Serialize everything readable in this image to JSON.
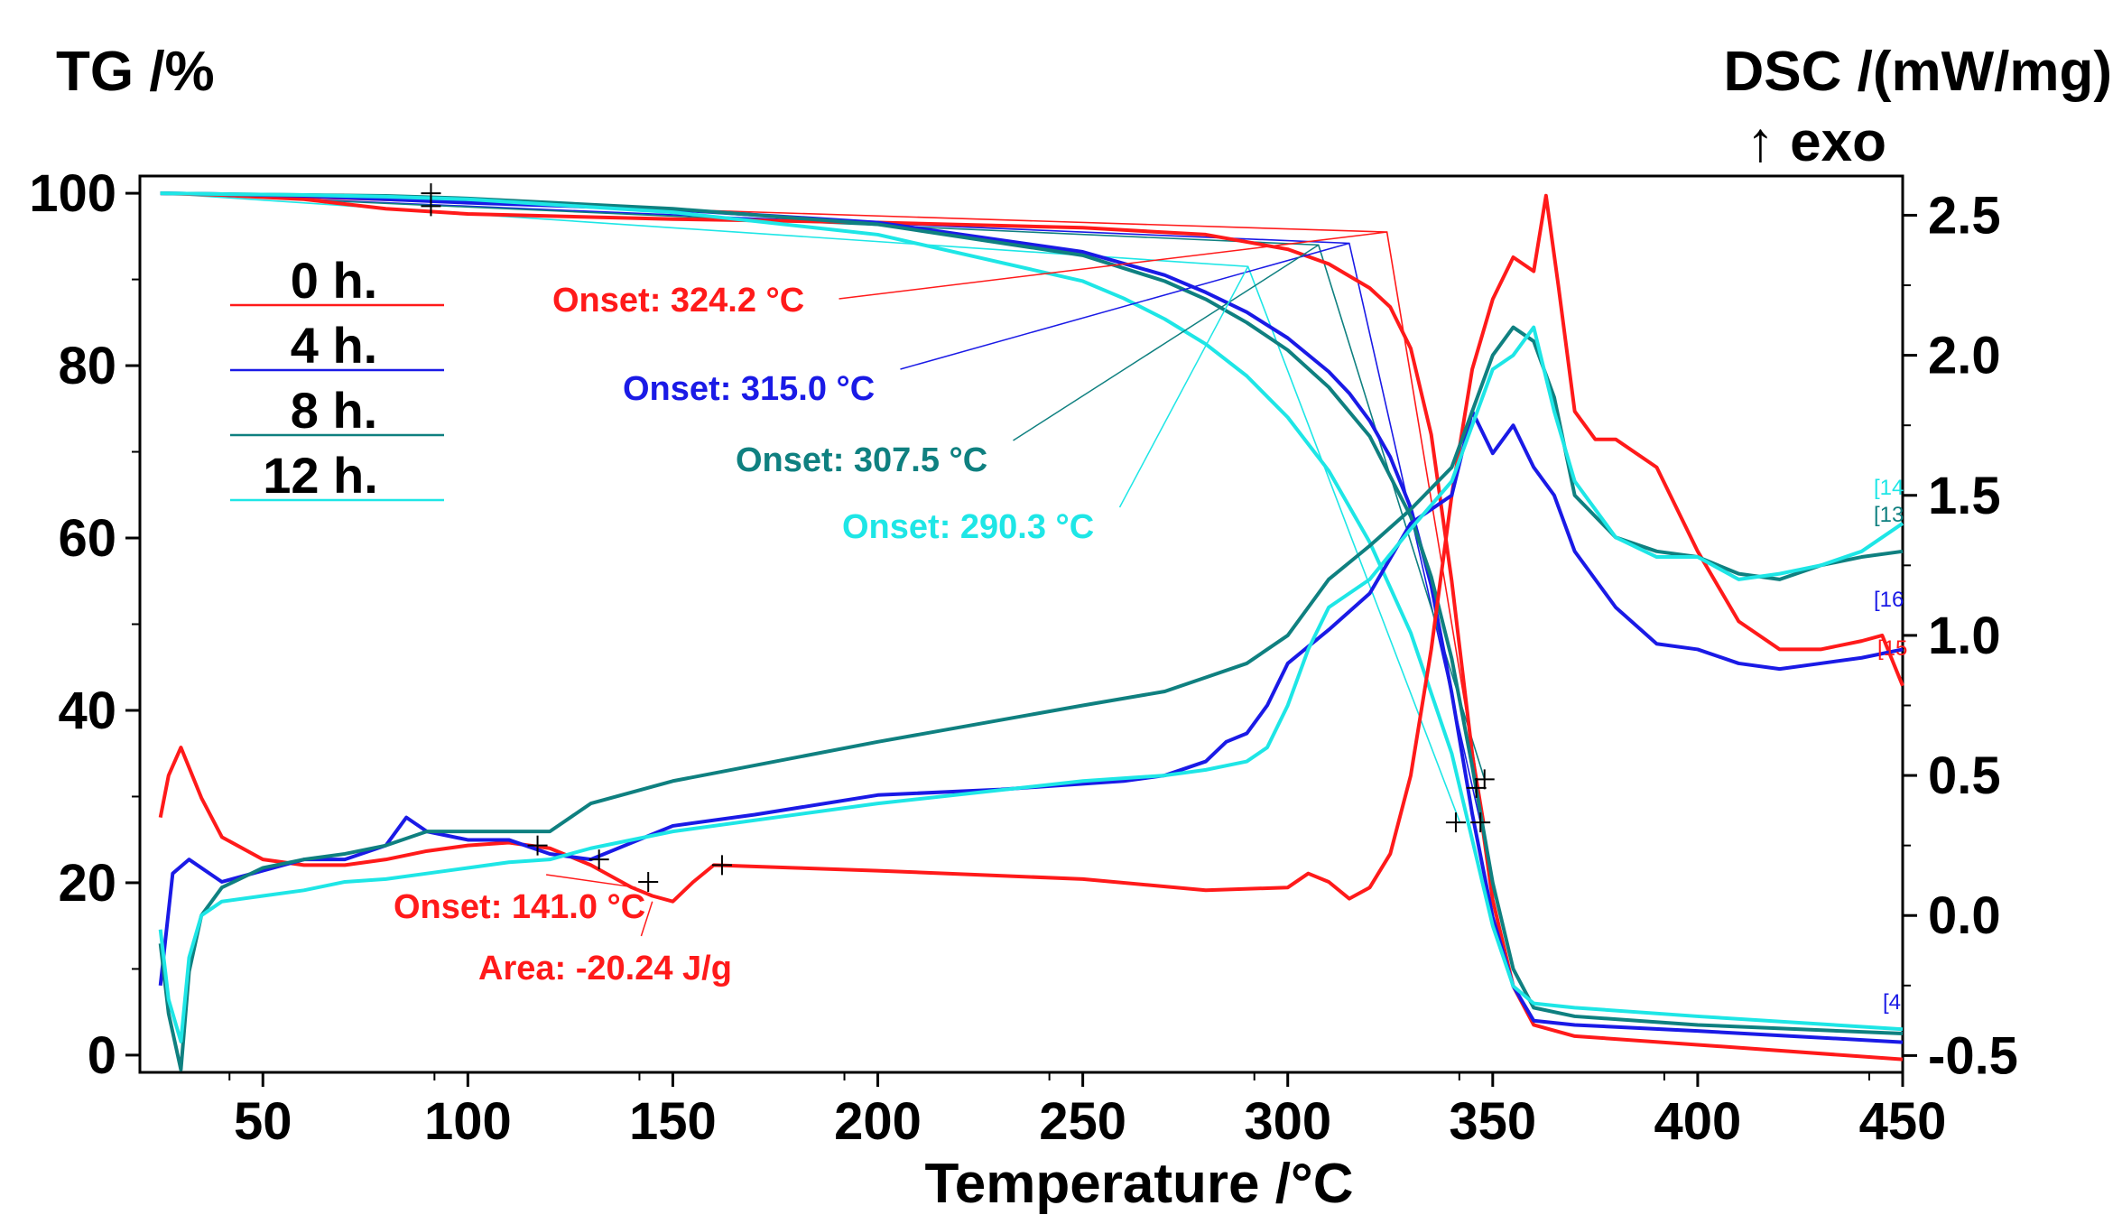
{
  "chart_data": {
    "type": "line",
    "xlabel": "Temperature /°C",
    "ylabel_left": "TG /%",
    "ylabel_right": "DSC /(mW/mg)",
    "ylabel_right_sub": "↑ exo",
    "xlim": [
      20,
      450
    ],
    "ylim_left": [
      -2,
      102
    ],
    "ylim_right": [
      -0.56,
      2.64
    ],
    "x_ticks": [
      50,
      100,
      150,
      200,
      250,
      300,
      350,
      400,
      450
    ],
    "x_tick_labels": [
      "50",
      "100",
      "150",
      "200",
      "250",
      "300",
      "350",
      "400",
      "450"
    ],
    "y_left_ticks": [
      0,
      20,
      40,
      60,
      80,
      100
    ],
    "y_left_tick_labels": [
      "0",
      "20",
      "40",
      "60",
      "80",
      "100"
    ],
    "y_right_ticks": [
      -0.5,
      0.0,
      0.5,
      1.0,
      1.5,
      2.0,
      2.5
    ],
    "y_right_tick_labels": [
      "-0.5",
      "0.0",
      "0.5",
      "1.0",
      "1.5",
      "2.0",
      "2.5"
    ],
    "legend": [
      {
        "label": "0 h.",
        "color": "#ff1a1a"
      },
      {
        "label": "4 h.",
        "color": "#1a1ae6"
      },
      {
        "label": "8 h.",
        "color": "#0f8080"
      },
      {
        "label": "12 h.",
        "color": "#1ee6e6"
      }
    ],
    "series": [
      {
        "name": "0 h.",
        "kind": "TG",
        "color": "#ff1a1a",
        "x": [
          25,
          40,
          60,
          80,
          100,
          150,
          200,
          250,
          280,
          300,
          310,
          320,
          325,
          330,
          335,
          340,
          345,
          350,
          355,
          360,
          370,
          400,
          450
        ],
        "y": [
          100,
          99.8,
          99.3,
          98.2,
          97.6,
          97.0,
          96.6,
          96.0,
          95.2,
          93.5,
          91.8,
          89.0,
          86.8,
          82.0,
          72.0,
          55.0,
          35.0,
          18.0,
          8.0,
          3.5,
          2.2,
          1.2,
          -0.5
        ]
      },
      {
        "name": "4 h.",
        "kind": "TG",
        "color": "#1a1ae6",
        "x": [
          25,
          40,
          60,
          80,
          100,
          150,
          200,
          250,
          270,
          280,
          290,
          300,
          310,
          315,
          320,
          325,
          330,
          335,
          340,
          345,
          350,
          355,
          360,
          370,
          400,
          450
        ],
        "y": [
          100,
          99.9,
          99.7,
          99.3,
          98.9,
          98.1,
          96.6,
          93.2,
          90.5,
          88.5,
          86.2,
          83.2,
          79.3,
          76.8,
          73.6,
          69.4,
          63.5,
          54.5,
          42.0,
          28.0,
          16.0,
          8.0,
          4.0,
          3.5,
          2.8,
          1.5
        ]
      },
      {
        "name": "8 h.",
        "kind": "TG",
        "color": "#0f8080",
        "x": [
          25,
          40,
          60,
          80,
          100,
          150,
          200,
          250,
          270,
          280,
          290,
          300,
          310,
          320,
          330,
          335,
          340,
          345,
          350,
          355,
          360,
          370,
          400,
          450
        ],
        "y": [
          100,
          99.9,
          99.8,
          99.7,
          99.4,
          98.2,
          96.4,
          92.8,
          89.8,
          87.7,
          85.0,
          81.8,
          77.5,
          71.8,
          62.5,
          55.5,
          46.0,
          33.5,
          20.0,
          10.0,
          5.5,
          4.5,
          3.5,
          2.5
        ]
      },
      {
        "name": "12 h.",
        "kind": "TG",
        "color": "#1ee6e6",
        "x": [
          25,
          40,
          60,
          80,
          100,
          150,
          200,
          250,
          260,
          270,
          280,
          290,
          300,
          310,
          320,
          330,
          340,
          345,
          350,
          355,
          360,
          370,
          400,
          450
        ],
        "y": [
          100,
          99.9,
          99.8,
          99.6,
          99.3,
          97.8,
          95.2,
          89.8,
          87.8,
          85.4,
          82.5,
          78.8,
          74.0,
          67.8,
          59.5,
          49.0,
          35.0,
          25.0,
          15.0,
          8.0,
          6.0,
          5.5,
          4.5,
          3.0
        ]
      },
      {
        "name": "0 h.",
        "kind": "DSC",
        "color": "#ff1a1a",
        "x": [
          25,
          27,
          30,
          35,
          40,
          50,
          60,
          70,
          80,
          90,
          100,
          110,
          120,
          130,
          140,
          145,
          150,
          155,
          160,
          180,
          200,
          250,
          280,
          300,
          305,
          310,
          315,
          320,
          325,
          330,
          335,
          340,
          345,
          350,
          355,
          360,
          363,
          366,
          370,
          375,
          380,
          390,
          400,
          410,
          420,
          430,
          440,
          445,
          450
        ],
        "y": [
          0.35,
          0.5,
          0.6,
          0.42,
          0.28,
          0.2,
          0.18,
          0.18,
          0.2,
          0.23,
          0.25,
          0.26,
          0.24,
          0.18,
          0.1,
          0.07,
          0.05,
          0.12,
          0.18,
          0.17,
          0.16,
          0.13,
          0.09,
          0.1,
          0.15,
          0.12,
          0.06,
          0.1,
          0.22,
          0.5,
          0.95,
          1.5,
          1.95,
          2.2,
          2.35,
          2.3,
          2.57,
          2.25,
          1.8,
          1.7,
          1.7,
          1.6,
          1.3,
          1.05,
          0.95,
          0.95,
          0.98,
          1.0,
          0.82
        ]
      },
      {
        "name": "4 h.",
        "kind": "DSC",
        "color": "#1a1ae6",
        "x": [
          25,
          28,
          32,
          40,
          50,
          60,
          70,
          80,
          85,
          90,
          100,
          110,
          120,
          130,
          150,
          170,
          200,
          230,
          260,
          270,
          280,
          285,
          290,
          295,
          300,
          310,
          320,
          330,
          340,
          345,
          350,
          355,
          360,
          365,
          370,
          380,
          390,
          400,
          410,
          420,
          430,
          440,
          450
        ],
        "y": [
          -0.25,
          0.15,
          0.2,
          0.12,
          0.16,
          0.2,
          0.2,
          0.25,
          0.35,
          0.3,
          0.27,
          0.27,
          0.22,
          0.2,
          0.32,
          0.36,
          0.43,
          0.45,
          0.48,
          0.5,
          0.55,
          0.62,
          0.65,
          0.75,
          0.9,
          1.02,
          1.15,
          1.4,
          1.5,
          1.8,
          1.65,
          1.75,
          1.6,
          1.5,
          1.3,
          1.1,
          0.97,
          0.95,
          0.9,
          0.88,
          0.9,
          0.92,
          0.95
        ]
      },
      {
        "name": "8 h.",
        "kind": "DSC",
        "color": "#0f8080",
        "x": [
          25,
          27,
          30,
          32,
          35,
          40,
          50,
          60,
          70,
          80,
          90,
          100,
          110,
          120,
          130,
          150,
          200,
          250,
          270,
          280,
          290,
          300,
          305,
          310,
          320,
          330,
          340,
          345,
          350,
          355,
          360,
          365,
          370,
          380,
          390,
          400,
          410,
          420,
          430,
          440,
          450
        ],
        "y": [
          -0.1,
          -0.35,
          -0.55,
          -0.2,
          0.0,
          0.1,
          0.17,
          0.2,
          0.22,
          0.25,
          0.3,
          0.3,
          0.3,
          0.3,
          0.4,
          0.48,
          0.62,
          0.75,
          0.8,
          0.85,
          0.9,
          1.0,
          1.1,
          1.2,
          1.32,
          1.45,
          1.6,
          1.8,
          2.0,
          2.1,
          2.05,
          1.85,
          1.5,
          1.35,
          1.3,
          1.28,
          1.22,
          1.2,
          1.25,
          1.28,
          1.3
        ]
      },
      {
        "name": "12 h.",
        "kind": "DSC",
        "color": "#1ee6e6",
        "x": [
          25,
          27,
          30,
          32,
          35,
          40,
          50,
          60,
          70,
          80,
          90,
          100,
          110,
          120,
          130,
          150,
          200,
          250,
          270,
          280,
          290,
          295,
          300,
          305,
          310,
          315,
          320,
          330,
          340,
          345,
          350,
          355,
          360,
          365,
          370,
          380,
          390,
          400,
          410,
          420,
          430,
          440,
          450
        ],
        "y": [
          -0.05,
          -0.3,
          -0.45,
          -0.15,
          0.0,
          0.05,
          0.07,
          0.09,
          0.12,
          0.13,
          0.15,
          0.17,
          0.19,
          0.2,
          0.24,
          0.3,
          0.4,
          0.48,
          0.5,
          0.52,
          0.55,
          0.6,
          0.75,
          0.95,
          1.1,
          1.15,
          1.2,
          1.38,
          1.55,
          1.75,
          1.95,
          2.0,
          2.1,
          1.8,
          1.55,
          1.35,
          1.28,
          1.28,
          1.2,
          1.22,
          1.25,
          1.3,
          1.4
        ]
      }
    ],
    "onset_constructions": [
      {
        "color": "#ff1a1a",
        "x": [
          25,
          324.2,
          348
        ],
        "y": [
          100,
          95.5,
          27
        ]
      },
      {
        "color": "#1a1ae6",
        "x": [
          25,
          315.0,
          347
        ],
        "y": [
          100,
          94.2,
          27
        ]
      },
      {
        "color": "#0f8080",
        "x": [
          25,
          307.5,
          348
        ],
        "y": [
          100,
          94.0,
          32
        ]
      },
      {
        "color": "#1ee6e6",
        "x": [
          25,
          290.3,
          342
        ],
        "y": [
          100,
          91.5,
          27
        ]
      }
    ],
    "annotations": [
      {
        "text": "Onset: 324.2 °C",
        "color": "#ff1a1a",
        "label_at": [
          324.2,
          95.5
        ]
      },
      {
        "text": "Onset: 315.0 °C",
        "color": "#1a1ae6",
        "label_at": [
          315.0,
          94.2
        ]
      },
      {
        "text": "Onset: 307.5 °C",
        "color": "#0f8080",
        "label_at": [
          307.5,
          94.0
        ]
      },
      {
        "text": "Onset: 290.3 °C",
        "color": "#1ee6e6",
        "label_at": [
          290.3,
          91.5
        ]
      },
      {
        "text": "Onset: 141.0 °C",
        "color": "#ff1a1a",
        "label_at": [
          141.0,
          0.1
        ]
      },
      {
        "text": "Area: -20.24 J/g",
        "color": "#ff1a1a",
        "label_at": [
          145.0,
          0.05
        ]
      }
    ],
    "end_tags": [
      {
        "text": "[14",
        "color": "#1ee6e6"
      },
      {
        "text": "[13",
        "color": "#0f8080"
      },
      {
        "text": "[16",
        "color": "#1a1ae6"
      },
      {
        "text": "[15",
        "color": "#ff1a1a"
      },
      {
        "text": "[4",
        "color": "#1a1ae6"
      }
    ]
  }
}
